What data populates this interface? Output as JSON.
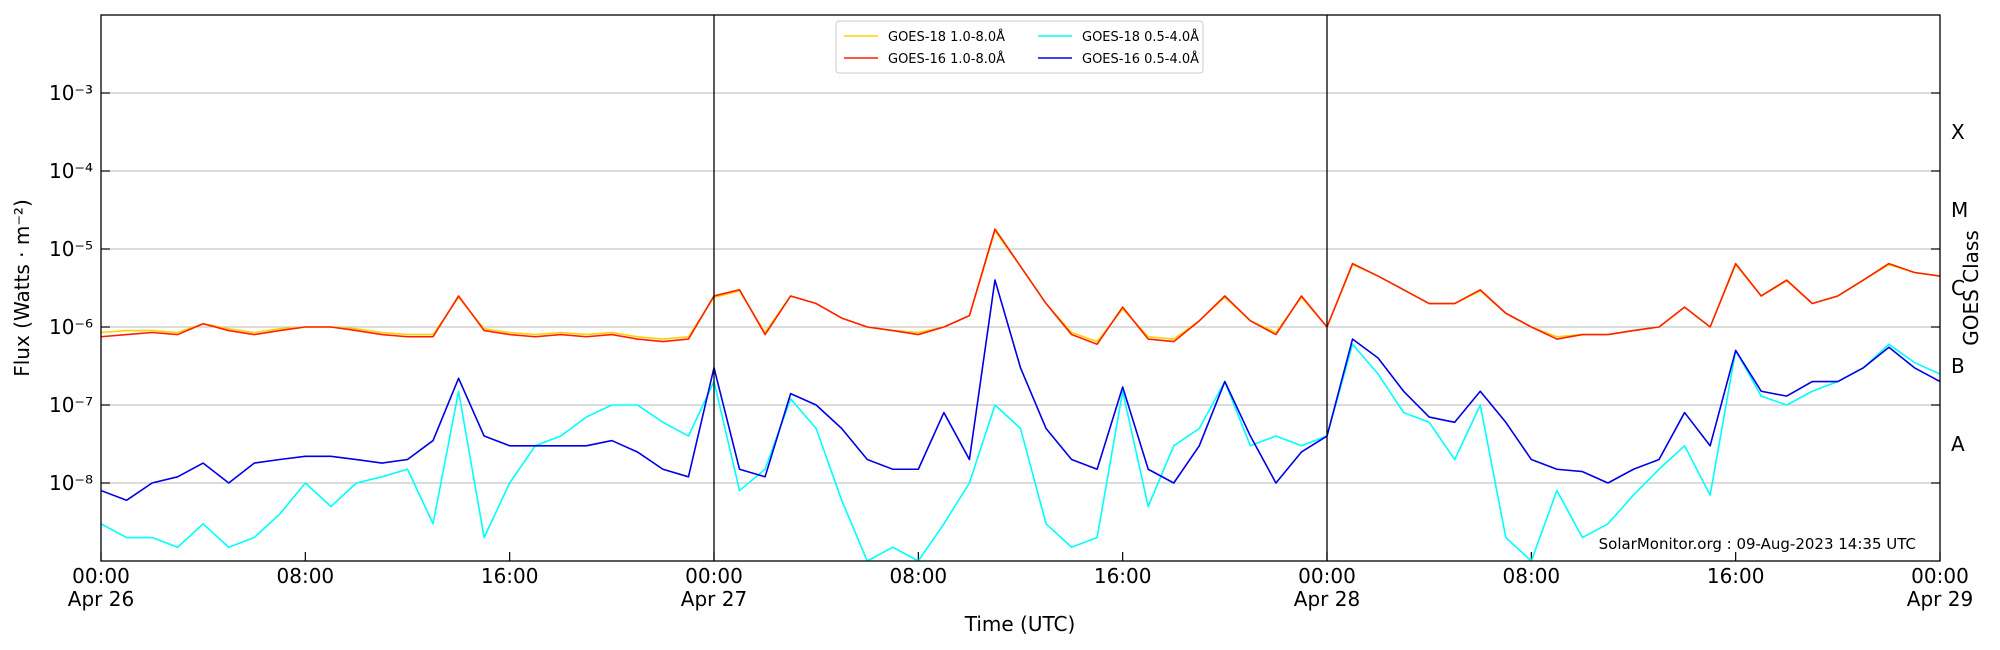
{
  "chart_data": {
    "type": "line",
    "x_label": "Time (UTC)",
    "y_label": "Flux (Watts · m⁻²)",
    "y2_label": "GOES Class",
    "annotation": "SolarMonitor.org : 09-Aug-2023 14:35 UTC",
    "log_scale": true,
    "grid": true,
    "legend": "top",
    "x": [
      "Apr 26 00:00",
      "Apr 26 01:00",
      "Apr 26 02:00",
      "Apr 26 03:00",
      "Apr 26 04:00",
      "Apr 26 05:00",
      "Apr 26 06:00",
      "Apr 26 07:00",
      "Apr 26 08:00",
      "Apr 26 09:00",
      "Apr 26 10:00",
      "Apr 26 11:00",
      "Apr 26 12:00",
      "Apr 26 13:00",
      "Apr 26 14:00",
      "Apr 26 15:00",
      "Apr 26 16:00",
      "Apr 26 17:00",
      "Apr 26 18:00",
      "Apr 26 19:00",
      "Apr 26 20:00",
      "Apr 26 21:00",
      "Apr 26 22:00",
      "Apr 26 23:00",
      "Apr 27 00:00",
      "Apr 27 01:00",
      "Apr 27 02:00",
      "Apr 27 03:00",
      "Apr 27 04:00",
      "Apr 27 05:00",
      "Apr 27 06:00",
      "Apr 27 07:00",
      "Apr 27 08:00",
      "Apr 27 09:00",
      "Apr 27 10:00",
      "Apr 27 11:00",
      "Apr 27 12:00",
      "Apr 27 13:00",
      "Apr 27 14:00",
      "Apr 27 15:00",
      "Apr 27 16:00",
      "Apr 27 17:00",
      "Apr 27 18:00",
      "Apr 27 19:00",
      "Apr 27 20:00",
      "Apr 27 21:00",
      "Apr 27 22:00",
      "Apr 27 23:00",
      "Apr 28 00:00",
      "Apr 28 01:00",
      "Apr 28 02:00",
      "Apr 28 03:00",
      "Apr 28 04:00",
      "Apr 28 05:00",
      "Apr 28 06:00",
      "Apr 28 07:00",
      "Apr 28 08:00",
      "Apr 28 09:00",
      "Apr 28 10:00",
      "Apr 28 11:00",
      "Apr 28 12:00",
      "Apr 28 13:00",
      "Apr 28 14:00",
      "Apr 28 15:00",
      "Apr 28 16:00",
      "Apr 28 17:00",
      "Apr 28 18:00",
      "Apr 28 19:00",
      "Apr 28 20:00",
      "Apr 28 21:00",
      "Apr 28 22:00",
      "Apr 28 23:00",
      "Apr 29 00:00"
    ],
    "xlim": [
      "Apr 26 00:00",
      "Apr 29 00:00"
    ],
    "xticks": [
      {
        "value": "Apr 26 00:00",
        "label": "00:00"
      },
      {
        "value": "Apr 26 08:00",
        "label": "08:00"
      },
      {
        "value": "Apr 26 16:00",
        "label": "16:00"
      },
      {
        "value": "Apr 27 00:00",
        "label": "00:00"
      },
      {
        "value": "Apr 27 08:00",
        "label": "08:00"
      },
      {
        "value": "Apr 27 16:00",
        "label": "16:00"
      },
      {
        "value": "Apr 28 00:00",
        "label": "00:00"
      },
      {
        "value": "Apr 28 08:00",
        "label": "08:00"
      },
      {
        "value": "Apr 28 16:00",
        "label": "16:00"
      },
      {
        "value": "Apr 29 00:00",
        "label": "00:00"
      }
    ],
    "day_labels": [
      {
        "value": "Apr 26 00:00",
        "label": "Apr 26"
      },
      {
        "value": "Apr 27 00:00",
        "label": "Apr 27"
      },
      {
        "value": "Apr 28 00:00",
        "label": "Apr 28"
      },
      {
        "value": "Apr 29 00:00",
        "label": "Apr 29"
      }
    ],
    "day_lines": [
      "Apr 27 00:00",
      "Apr 28 00:00"
    ],
    "ylim": [
      1e-09,
      0.01
    ],
    "yticks": [
      {
        "value": 1e-08,
        "label": "10⁻⁸"
      },
      {
        "value": 1e-07,
        "label": "10⁻⁷"
      },
      {
        "value": 1e-06,
        "label": "10⁻⁶"
      },
      {
        "value": 1e-05,
        "label": "10⁻⁵"
      },
      {
        "value": 0.0001,
        "label": "10⁻⁴"
      },
      {
        "value": 0.001,
        "label": "10⁻³"
      }
    ],
    "classes": [
      {
        "value": 1e-08,
        "label": "A"
      },
      {
        "value": 1e-07,
        "label": "B"
      },
      {
        "value": 1e-06,
        "label": "C"
      },
      {
        "value": 1e-05,
        "label": "M"
      },
      {
        "value": 0.0001,
        "label": "X"
      }
    ],
    "series": [
      {
        "name": "GOES-18 1.0-8.0Å",
        "color": "#ffd000",
        "values": [
          8.5e-07,
          9e-07,
          9e-07,
          8.5e-07,
          1.1e-06,
          9.5e-07,
          8.5e-07,
          9.5e-07,
          1e-06,
          1e-06,
          9.5e-07,
          8.5e-07,
          8e-07,
          8e-07,
          2.4e-06,
          9.5e-07,
          8.5e-07,
          8e-07,
          8.5e-07,
          8e-07,
          8.5e-07,
          7.5e-07,
          7e-07,
          7.5e-07,
          2.4e-06,
          2.9e-06,
          8.5e-07,
          2.5e-06,
          2e-06,
          1.3e-06,
          1e-06,
          9e-07,
          8.5e-07,
          1e-06,
          1.4e-06,
          1.7e-05,
          6e-06,
          2e-06,
          8.5e-07,
          6.5e-07,
          1.7e-06,
          7.5e-07,
          7e-07,
          1.2e-06,
          2.4e-06,
          1.2e-06,
          8.5e-07,
          2.4e-06,
          1e-06,
          6.3e-06,
          4.5e-06,
          3e-06,
          2e-06,
          2e-06,
          2.9e-06,
          1.5e-06,
          1e-06,
          7.5e-07,
          8e-07,
          8e-07,
          9e-07,
          1e-06,
          1.8e-06,
          1e-06,
          6.3e-06,
          2.5e-06,
          3.9e-06,
          2e-06,
          2.5e-06,
          4e-06,
          6.3e-06,
          5e-06,
          4.5e-06
        ]
      },
      {
        "name": "GOES-16 1.0-8.0Å",
        "color": "#ff2000",
        "values": [
          7.5e-07,
          8e-07,
          8.5e-07,
          8e-07,
          1.1e-06,
          9e-07,
          8e-07,
          9e-07,
          1e-06,
          1e-06,
          9e-07,
          8e-07,
          7.5e-07,
          7.5e-07,
          2.5e-06,
          9e-07,
          8e-07,
          7.5e-07,
          8e-07,
          7.5e-07,
          8e-07,
          7e-07,
          6.5e-07,
          7e-07,
          2.5e-06,
          3e-06,
          8e-07,
          2.5e-06,
          2e-06,
          1.3e-06,
          1e-06,
          9e-07,
          8e-07,
          1e-06,
          1.4e-06,
          1.8e-05,
          6e-06,
          2e-06,
          8e-07,
          6e-07,
          1.8e-06,
          7e-07,
          6.5e-07,
          1.2e-06,
          2.5e-06,
          1.2e-06,
          8e-07,
          2.5e-06,
          1e-06,
          6.5e-06,
          4.5e-06,
          3e-06,
          2e-06,
          2e-06,
          3e-06,
          1.5e-06,
          1e-06,
          7e-07,
          8e-07,
          8e-07,
          9e-07,
          1e-06,
          1.8e-06,
          1e-06,
          6.5e-06,
          2.5e-06,
          4e-06,
          2e-06,
          2.5e-06,
          4e-06,
          6.5e-06,
          5e-06,
          4.5e-06
        ]
      },
      {
        "name": "GOES-18 0.5-4.0Å",
        "color": "#00ffff",
        "values": [
          3e-09,
          2e-09,
          2e-09,
          1.5e-09,
          3e-09,
          1.5e-09,
          2e-09,
          4e-09,
          1e-08,
          5e-09,
          1e-08,
          1.2e-08,
          1.5e-08,
          3e-09,
          1.5e-07,
          2e-09,
          1e-08,
          3e-08,
          4e-08,
          7e-08,
          1e-07,
          1e-07,
          6e-08,
          4e-08,
          2e-07,
          8e-09,
          1.5e-08,
          1.2e-07,
          5e-08,
          6e-09,
          1e-09,
          1.5e-09,
          1e-09,
          3e-09,
          1e-08,
          1e-07,
          5e-08,
          3e-09,
          1.5e-09,
          2e-09,
          1.5e-07,
          5e-09,
          3e-08,
          5e-08,
          2e-07,
          3e-08,
          4e-08,
          3e-08,
          4e-08,
          6e-07,
          2.5e-07,
          8e-08,
          6e-08,
          2e-08,
          1e-07,
          2e-09,
          1e-09,
          8e-09,
          2e-09,
          3e-09,
          7e-09,
          1.5e-08,
          3e-08,
          7e-09,
          5e-07,
          1.3e-07,
          1e-07,
          1.5e-07,
          2e-07,
          3e-07,
          6e-07,
          3.5e-07,
          2.5e-07
        ]
      },
      {
        "name": "GOES-16 0.5-4.0Å",
        "color": "#0000e6",
        "values": [
          8e-09,
          6e-09,
          1e-08,
          1.2e-08,
          1.8e-08,
          1e-08,
          1.8e-08,
          2e-08,
          2.2e-08,
          2.2e-08,
          2e-08,
          1.8e-08,
          2e-08,
          3.5e-08,
          2.2e-07,
          4e-08,
          3e-08,
          3e-08,
          3e-08,
          3e-08,
          3.5e-08,
          2.5e-08,
          1.5e-08,
          1.2e-08,
          3e-07,
          1.5e-08,
          1.2e-08,
          1.4e-07,
          1e-07,
          5e-08,
          2e-08,
          1.5e-08,
          1.5e-08,
          8e-08,
          2e-08,
          4e-06,
          3e-07,
          5e-08,
          2e-08,
          1.5e-08,
          1.7e-07,
          1.5e-08,
          1e-08,
          3e-08,
          2e-07,
          4e-08,
          1e-08,
          2.5e-08,
          4e-08,
          7e-07,
          4e-07,
          1.5e-07,
          7e-08,
          6e-08,
          1.5e-07,
          6e-08,
          2e-08,
          1.5e-08,
          1.4e-08,
          1e-08,
          1.5e-08,
          2e-08,
          8e-08,
          3e-08,
          5e-07,
          1.5e-07,
          1.3e-07,
          2e-07,
          2e-07,
          3e-07,
          5.5e-07,
          3e-07,
          2e-07
        ]
      }
    ]
  }
}
